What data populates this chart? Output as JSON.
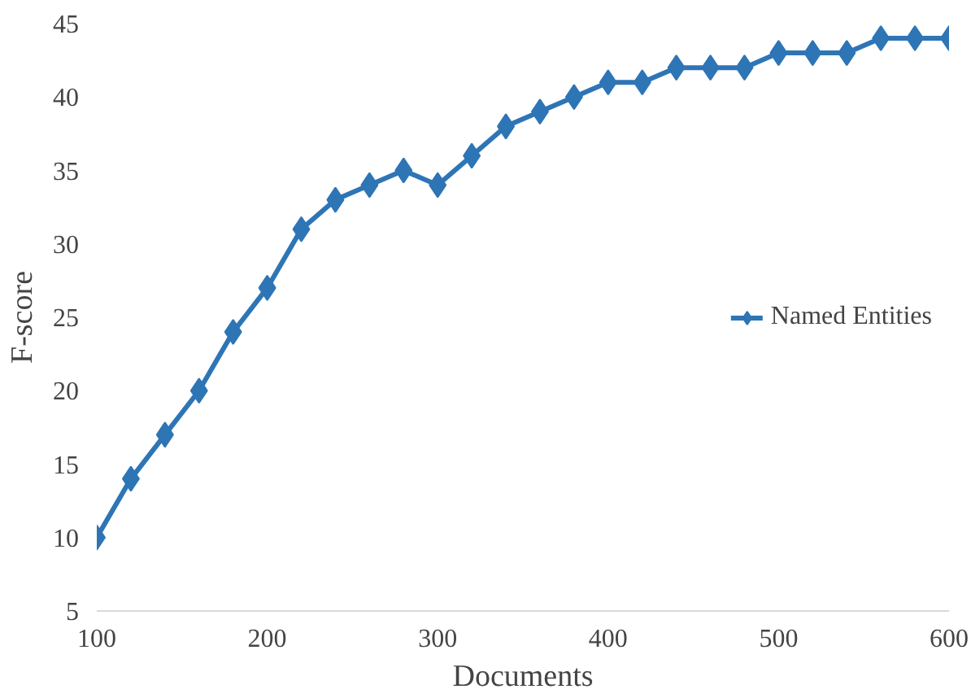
{
  "chart_data": {
    "type": "line",
    "xlabel": "Documents",
    "ylabel": "F-score",
    "x": [
      100,
      120,
      140,
      160,
      180,
      200,
      220,
      240,
      260,
      280,
      300,
      320,
      340,
      360,
      380,
      400,
      420,
      440,
      460,
      480,
      500,
      520,
      540,
      560,
      580,
      600
    ],
    "series": [
      {
        "name": "Named Entities",
        "color": "#2e75b6",
        "values": [
          10,
          14,
          17,
          20,
          24,
          27,
          31,
          33,
          34,
          35,
          34,
          36,
          38,
          39,
          40,
          41,
          41,
          42,
          42,
          42,
          43,
          43,
          43,
          44,
          44,
          44
        ]
      }
    ],
    "xlim": [
      100,
      600
    ],
    "ylim": [
      5,
      45
    ],
    "xticks": [
      100,
      200,
      300,
      400,
      500,
      600
    ],
    "yticks": [
      5,
      10,
      15,
      20,
      25,
      30,
      35,
      40,
      45
    ],
    "grid": false,
    "legend": "right",
    "marker": "diamond",
    "line_style": "solid"
  }
}
